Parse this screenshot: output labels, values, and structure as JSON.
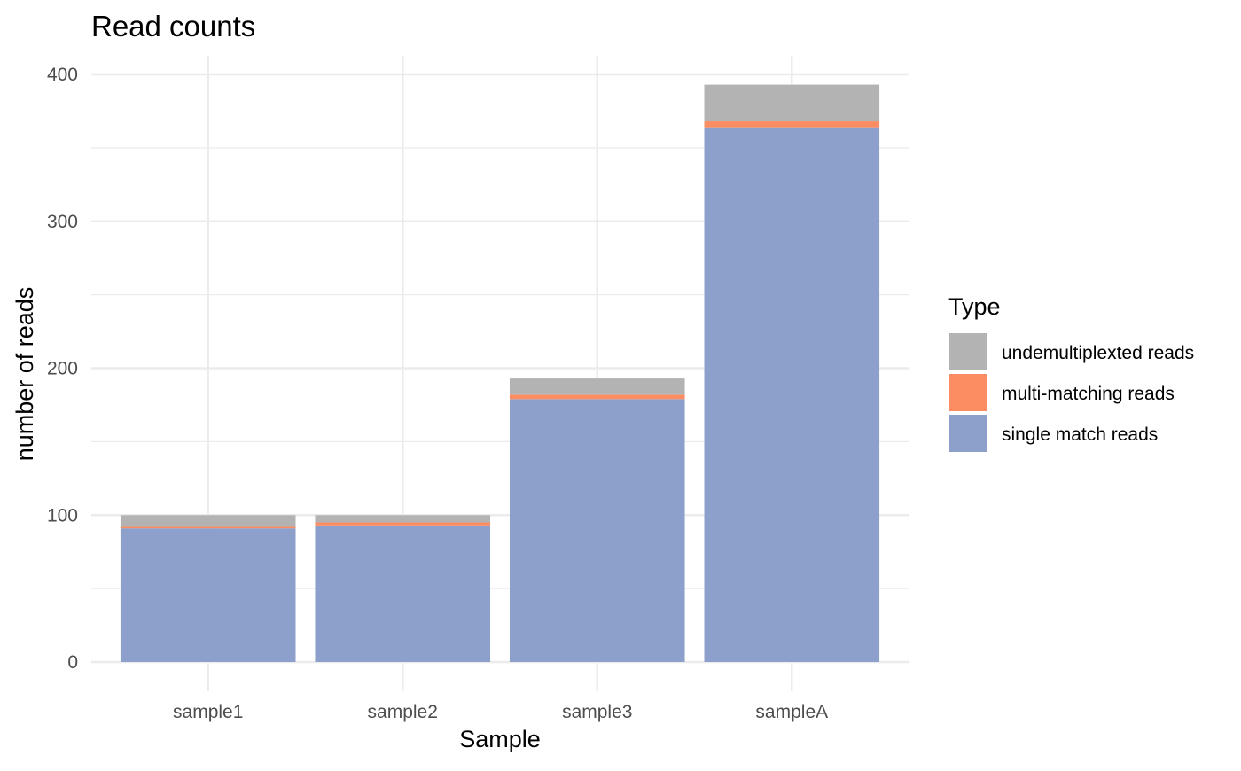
{
  "chart_data": {
    "type": "bar",
    "stacked": true,
    "title": "Read counts",
    "xlabel": "Sample",
    "ylabel": "number of reads",
    "categories": [
      "sample1",
      "sample2",
      "sample3",
      "sampleA"
    ],
    "ylim": [
      0,
      410
    ],
    "yticks": [
      0,
      100,
      200,
      300,
      400
    ],
    "grid": true,
    "legend": {
      "title": "Type",
      "position": "right",
      "order": [
        "undemultiplexted reads",
        "multi-matching reads",
        "single match reads"
      ]
    },
    "series": [
      {
        "name": "single match reads",
        "color": "#8DA0CB",
        "values": [
          91,
          93,
          179,
          364
        ]
      },
      {
        "name": "multi-matching reads",
        "color": "#FC8D62",
        "values": [
          1,
          2,
          3,
          4
        ]
      },
      {
        "name": "undemultiplexted reads",
        "color": "#B3B3B3",
        "values": [
          8,
          5,
          11,
          25
        ]
      }
    ]
  }
}
